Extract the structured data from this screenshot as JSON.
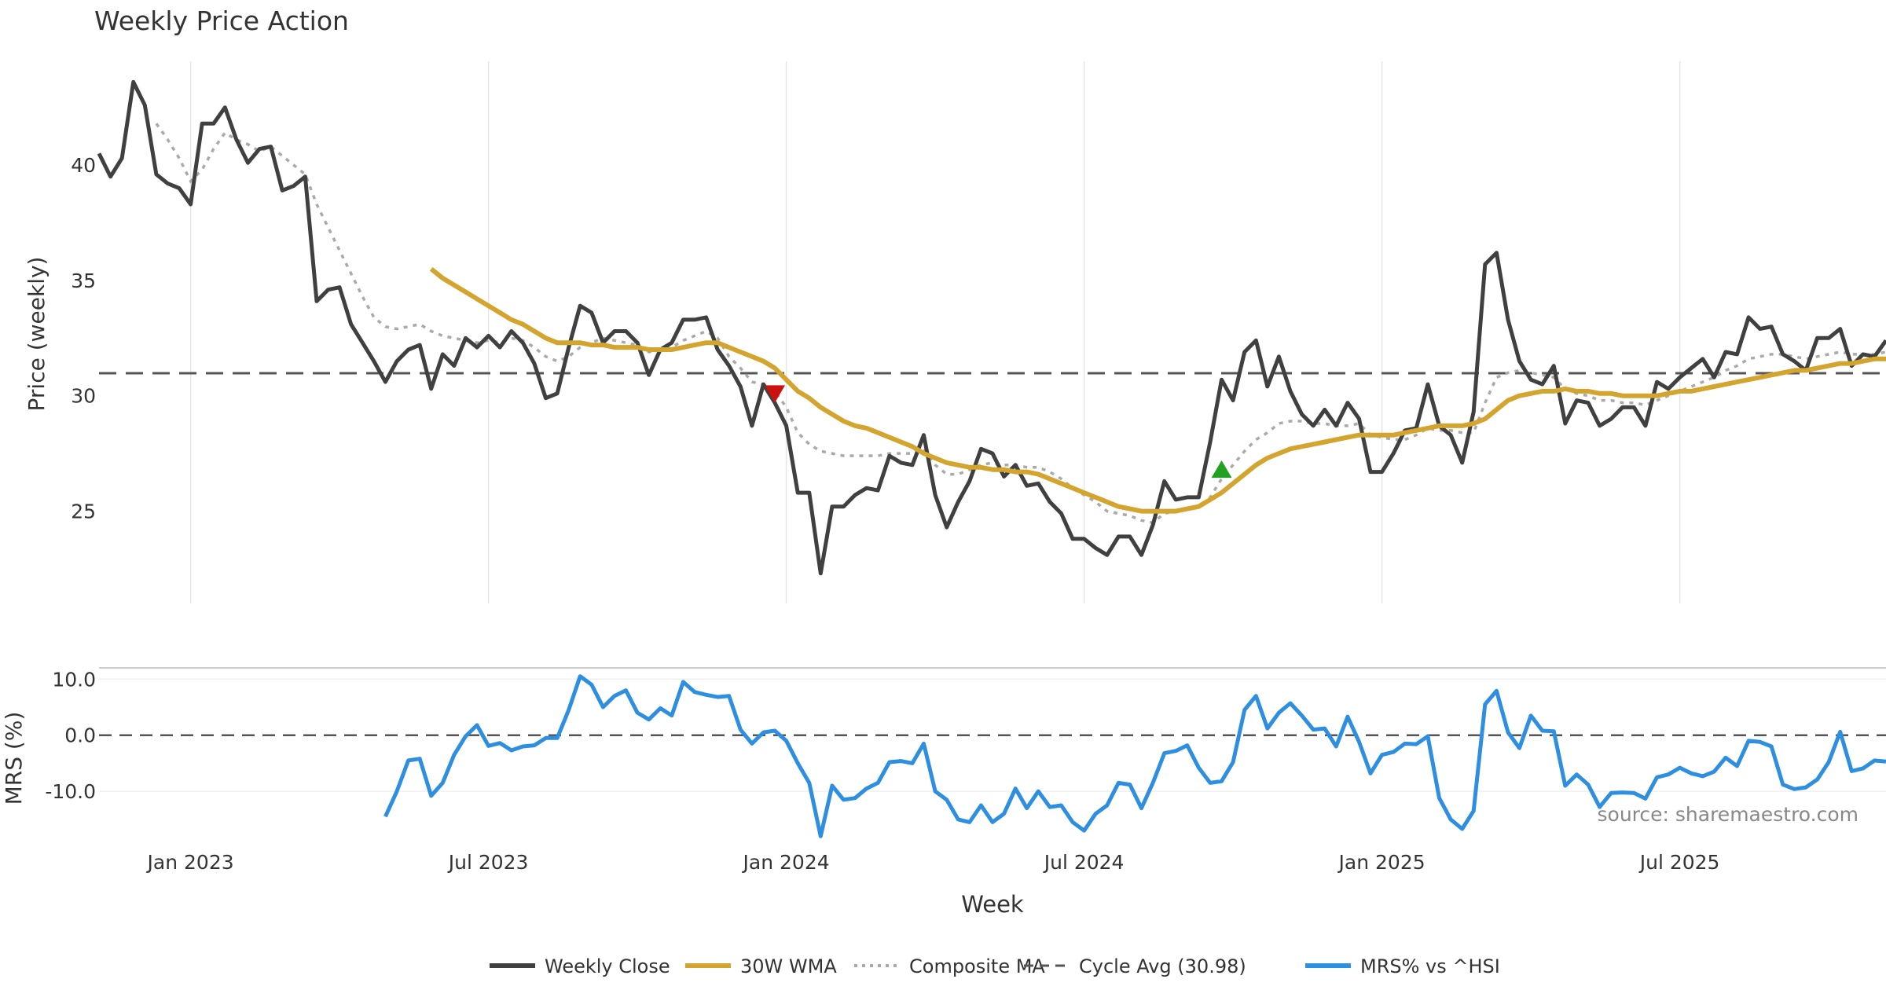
{
  "chart_data": {
    "type": "line",
    "title": "Weekly Price Action",
    "xlabel": "Week",
    "source_note": "source: sharemaestro.com",
    "colors": {
      "weekly_close": "#404040",
      "wma": "#d4a52e",
      "composite_ma": "#aaaaaa",
      "cycle_avg": "#555555",
      "mrs": "#2e8fe0",
      "zero_line": "#555555",
      "grid": "#e6e6e6",
      "signal_sell": "#cc1111",
      "signal_buy": "#22a022",
      "text": "#333333"
    },
    "x_ticks": [
      "Jan 2023",
      "Jul 2023",
      "Jan 2024",
      "Jul 2024",
      "Jan 2025",
      "Jul 2025"
    ],
    "x_tick_index": [
      8,
      34,
      60,
      86,
      112,
      138
    ],
    "x_range": [
      0,
      156
    ],
    "price_panel": {
      "ylabel": "Price (weekly)",
      "ylim": [
        21.0,
        44.5
      ],
      "y_ticks": [
        "25",
        "30",
        "35",
        "40"
      ],
      "y_tick_values": [
        25,
        30,
        35,
        40
      ],
      "cycle_avg": 30.98,
      "weekly_close": [
        40.5,
        39.5,
        40.3,
        43.6,
        42.6,
        39.6,
        39.2,
        39.0,
        38.3,
        41.8,
        41.8,
        42.5,
        41.1,
        40.1,
        40.7,
        40.8,
        38.9,
        39.1,
        39.5,
        34.1,
        34.6,
        34.7,
        33.1,
        32.3,
        31.5,
        30.6,
        31.5,
        32.0,
        32.2,
        30.3,
        31.8,
        31.3,
        32.5,
        32.1,
        32.6,
        32.1,
        32.8,
        32.3,
        31.4,
        29.9,
        30.1,
        32.1,
        33.9,
        33.6,
        32.3,
        32.8,
        32.8,
        32.3,
        30.9,
        32.0,
        32.3,
        33.3,
        33.3,
        33.4,
        32.0,
        31.3,
        30.4,
        28.7,
        30.5,
        29.7,
        28.7,
        25.8,
        25.8,
        22.3,
        25.2,
        25.2,
        25.7,
        26.0,
        25.9,
        27.4,
        27.1,
        27.0,
        28.3,
        25.7,
        24.3,
        25.4,
        26.3,
        27.7,
        27.5,
        26.5,
        27.0,
        26.1,
        26.2,
        25.4,
        24.9,
        23.8,
        23.8,
        23.4,
        23.1,
        23.9,
        23.9,
        23.1,
        24.4,
        26.3,
        25.5,
        25.6,
        25.6,
        28.0,
        30.7,
        29.8,
        31.9,
        32.4,
        30.4,
        31.7,
        30.2,
        29.2,
        28.7,
        29.4,
        28.7,
        29.7,
        29.0,
        26.7,
        26.7,
        27.5,
        28.5,
        28.6,
        30.5,
        28.7,
        28.3,
        27.1,
        29.3,
        35.7,
        36.2,
        33.3,
        31.5,
        30.7,
        30.5,
        31.3,
        28.8,
        29.8,
        29.7,
        28.7,
        29.0,
        29.5,
        29.5,
        28.7,
        30.6,
        30.3,
        30.8,
        31.2,
        31.6,
        30.8,
        31.9,
        31.8,
        33.4,
        32.9,
        33.0,
        31.8,
        31.5,
        31.1,
        32.5,
        32.5,
        32.9,
        31.3,
        31.8,
        31.7,
        32.4
      ],
      "wma": [
        null,
        null,
        null,
        null,
        null,
        null,
        null,
        null,
        null,
        null,
        null,
        null,
        null,
        null,
        null,
        null,
        null,
        null,
        null,
        null,
        null,
        null,
        null,
        null,
        null,
        null,
        null,
        null,
        null,
        35.5,
        35.1,
        34.8,
        34.5,
        34.2,
        33.9,
        33.6,
        33.3,
        33.1,
        32.8,
        32.5,
        32.3,
        32.3,
        32.3,
        32.2,
        32.2,
        32.1,
        32.1,
        32.1,
        32.0,
        32.0,
        32.0,
        32.1,
        32.2,
        32.3,
        32.3,
        32.1,
        31.9,
        31.7,
        31.5,
        31.2,
        30.7,
        30.2,
        29.9,
        29.5,
        29.2,
        28.9,
        28.7,
        28.6,
        28.4,
        28.2,
        28.0,
        27.8,
        27.5,
        27.3,
        27.1,
        27.0,
        26.9,
        26.9,
        26.8,
        26.8,
        26.7,
        26.7,
        26.6,
        26.4,
        26.2,
        26.0,
        25.8,
        25.6,
        25.4,
        25.2,
        25.1,
        25.0,
        25.0,
        25.0,
        25.0,
        25.1,
        25.2,
        25.5,
        25.8,
        26.2,
        26.6,
        27.0,
        27.3,
        27.5,
        27.7,
        27.8,
        27.9,
        28.0,
        28.1,
        28.2,
        28.3,
        28.3,
        28.3,
        28.3,
        28.4,
        28.5,
        28.6,
        28.7,
        28.7,
        28.7,
        28.8,
        29.0,
        29.4,
        29.8,
        30.0,
        30.1,
        30.2,
        30.2,
        30.3,
        30.2,
        30.2,
        30.1,
        30.1,
        30.0,
        30.0,
        30.0,
        30.0,
        30.1,
        30.2,
        30.2,
        30.3,
        30.4,
        30.5,
        30.6,
        30.7,
        30.8,
        30.9,
        31.0,
        31.1,
        31.1,
        31.2,
        31.3,
        31.4,
        31.4,
        31.5,
        31.6,
        31.6
      ],
      "composite_ma": [
        null,
        null,
        null,
        null,
        null,
        41.8,
        41.1,
        40.3,
        39.3,
        39.8,
        40.7,
        41.4,
        41.1,
        40.9,
        40.6,
        40.8,
        40.4,
        40.0,
        39.6,
        38.3,
        37.3,
        36.3,
        35.3,
        34.3,
        33.4,
        33.0,
        32.9,
        33.0,
        33.1,
        32.8,
        32.6,
        32.5,
        32.4,
        32.3,
        32.4,
        32.3,
        32.5,
        32.4,
        32.1,
        31.7,
        31.5,
        31.7,
        32.1,
        32.3,
        32.5,
        32.4,
        32.3,
        32.2,
        31.9,
        32.0,
        32.1,
        32.4,
        32.6,
        32.8,
        32.5,
        31.7,
        31.2,
        30.6,
        30.5,
        30.2,
        29.5,
        28.4,
        27.9,
        27.6,
        27.5,
        27.4,
        27.4,
        27.4,
        27.4,
        27.5,
        27.5,
        27.5,
        27.7,
        27.0,
        26.6,
        26.6,
        26.8,
        27.0,
        27.1,
        27.0,
        27.0,
        26.9,
        26.9,
        26.7,
        26.4,
        26.0,
        25.7,
        25.4,
        25.0,
        24.9,
        24.8,
        24.6,
        24.5,
        24.9,
        25.0,
        25.1,
        25.2,
        25.6,
        26.4,
        27.0,
        27.6,
        28.1,
        28.4,
        28.8,
        28.9,
        28.9,
        28.8,
        28.8,
        28.7,
        28.7,
        28.8,
        28.3,
        28.2,
        28.1,
        28.1,
        28.3,
        28.6,
        28.5,
        28.5,
        28.4,
        28.4,
        29.7,
        30.8,
        31.0,
        31.1,
        31.0,
        30.9,
        30.8,
        30.3,
        30.1,
        30.0,
        29.8,
        29.8,
        29.7,
        29.7,
        29.6,
        29.8,
        30.0,
        30.2,
        30.4,
        30.6,
        30.8,
        31.1,
        31.3,
        31.6,
        31.7,
        31.8,
        31.8,
        31.7,
        31.6,
        31.7,
        31.8,
        31.9,
        31.8,
        31.8,
        31.8,
        31.9
      ],
      "signals": [
        {
          "type": "sell",
          "index": 59,
          "value": 30.1
        },
        {
          "type": "buy",
          "index": 98,
          "value": 26.8
        }
      ]
    },
    "mrs_panel": {
      "ylabel": "MRS (%)",
      "ylim": [
        -19.5,
        12.0
      ],
      "y_ticks": [
        "10.0",
        "0.0",
        "-10.0"
      ],
      "y_tick_values": [
        10,
        0,
        -10
      ],
      "mrs": [
        null,
        null,
        null,
        null,
        null,
        null,
        null,
        null,
        null,
        null,
        null,
        null,
        null,
        null,
        null,
        null,
        null,
        null,
        null,
        null,
        null,
        null,
        null,
        null,
        null,
        -14.5,
        -10.0,
        -4.5,
        -4.2,
        -10.8,
        -8.5,
        -3.5,
        -0.2,
        1.8,
        -1.9,
        -1.4,
        -2.7,
        -2.0,
        -1.8,
        -0.5,
        -0.5,
        4.5,
        10.5,
        9.0,
        5.0,
        7.0,
        8.0,
        4.0,
        2.8,
        4.8,
        3.5,
        9.5,
        7.7,
        7.2,
        6.8,
        7.0,
        1.0,
        -1.5,
        0.5,
        0.8,
        -1.0,
        -5.0,
        -8.5,
        -18.0,
        -9.0,
        -11.5,
        -11.2,
        -9.5,
        -8.5,
        -4.8,
        -4.6,
        -5.0,
        -1.5,
        -10.0,
        -11.5,
        -15.0,
        -15.5,
        -12.5,
        -15.5,
        -14.0,
        -9.5,
        -13.0,
        -10.0,
        -12.8,
        -12.5,
        -15.5,
        -17.0,
        -14.0,
        -12.5,
        -8.5,
        -8.8,
        -13.0,
        -8.5,
        -3.2,
        -2.8,
        -1.8,
        -5.8,
        -8.5,
        -8.2,
        -4.8,
        4.5,
        7.0,
        1.2,
        4.0,
        5.7,
        3.5,
        1.0,
        1.2,
        -2.0,
        3.3,
        -1.2,
        -6.8,
        -3.5,
        -3.0,
        -1.5,
        -1.6,
        -0.2,
        -11.2,
        -15.0,
        -16.7,
        -13.5,
        5.5,
        7.9,
        0.5,
        -2.3,
        3.5,
        0.8,
        0.7,
        -9.0,
        -7.0,
        -8.8,
        -12.8,
        -10.3,
        -10.2,
        -10.3,
        -11.3,
        -7.5,
        -7.0,
        -5.8,
        -6.8,
        -7.3,
        -6.5,
        -4.0,
        -5.5,
        -1.0,
        -1.2,
        -2.0,
        -8.8,
        -9.6,
        -9.3,
        -7.9,
        -4.8,
        0.6,
        -6.4,
        -5.9,
        -4.5,
        -4.7
      ]
    },
    "legend": [
      {
        "key": "weekly_close",
        "label": "Weekly Close"
      },
      {
        "key": "wma",
        "label": "30W WMA"
      },
      {
        "key": "composite_ma",
        "label": "Composite MA"
      },
      {
        "key": "cycle_avg",
        "label": "Cycle Avg (30.98)"
      },
      {
        "key": "mrs",
        "label": "MRS% vs ^HSI"
      }
    ]
  }
}
